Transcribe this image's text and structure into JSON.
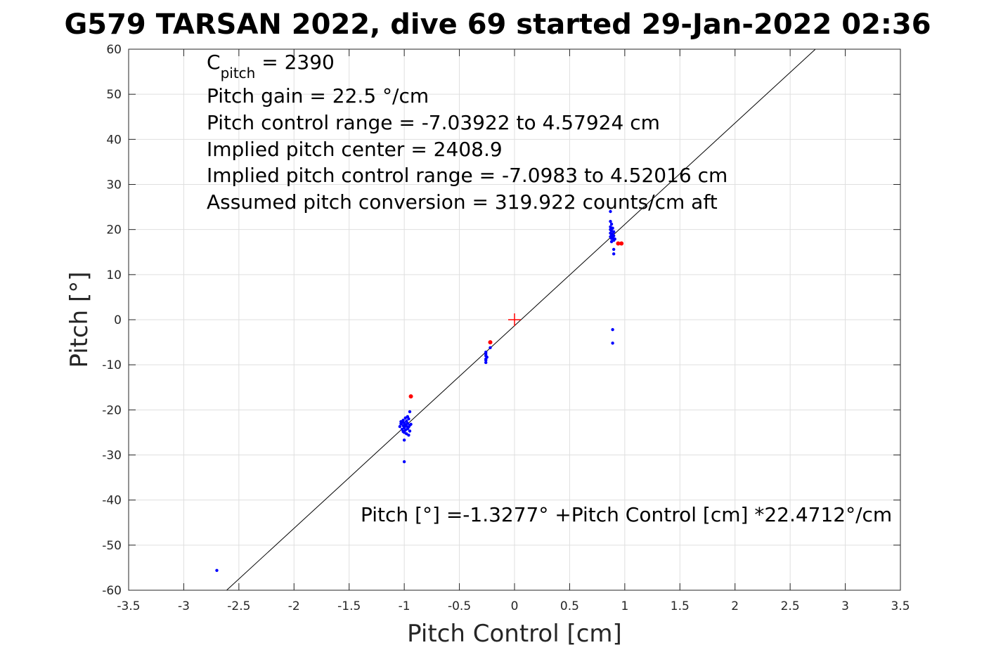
{
  "chart_data": {
    "type": "scatter",
    "title": "G579 TARSAN 2022, dive 69 started 29-Jan-2022 02:36",
    "xlabel": "Pitch Control [cm]",
    "ylabel": "Pitch [°]",
    "xlim": [
      -3.5,
      3.5
    ],
    "ylim": [
      -60,
      60
    ],
    "xticks": [
      -3.5,
      -3,
      -2.5,
      -2,
      -1.5,
      -1,
      -0.5,
      0,
      0.5,
      1,
      1.5,
      2,
      2.5,
      3,
      3.5
    ],
    "yticks": [
      -60,
      -50,
      -40,
      -30,
      -20,
      -10,
      0,
      10,
      20,
      30,
      40,
      50,
      60
    ],
    "xtick_labels": [
      "-3.5",
      "-3",
      "-2.5",
      "-2",
      "-1.5",
      "-1",
      "-0.5",
      "0",
      "0.5",
      "1",
      "1.5",
      "2",
      "2.5",
      "3",
      "3.5"
    ],
    "ytick_labels": [
      "-60",
      "-50",
      "-40",
      "-30",
      "-20",
      "-10",
      "0",
      "10",
      "20",
      "30",
      "40",
      "50",
      "60"
    ],
    "grid": true,
    "annotations": {
      "c_pitch_main": "C",
      "c_pitch_sub": "pitch",
      "c_pitch_value": " = 2390",
      "pitch_gain": "Pitch gain = 22.5 °/cm",
      "control_range": "Pitch control range = -7.03922 to 4.57924 cm",
      "implied_center": "Implied pitch center = 2408.9",
      "implied_range": "Implied pitch control range = -7.0983 to 4.52016 cm",
      "conversion": "Assumed pitch conversion = 319.922 counts/cm aft",
      "fit_equation": "Pitch [°] =-1.3277° +Pitch Control [cm] *22.4712°/cm"
    },
    "fit_line": {
      "intercept": -1.3277,
      "slope": 22.4712,
      "color": "#000000"
    },
    "center_marker": {
      "x": 0,
      "y": 0,
      "color": "#ff0000"
    },
    "series": [
      {
        "color": "#0000ff",
        "points": [
          [
            -2.7,
            -55.6
          ],
          [
            -1.0,
            -31.5
          ],
          [
            -1.0,
            -26.7
          ],
          [
            -0.95,
            -20.4
          ],
          [
            -0.97,
            -21.5
          ],
          [
            -0.99,
            -21.8
          ],
          [
            -0.96,
            -22.0
          ],
          [
            -1.01,
            -22.3
          ],
          [
            -0.98,
            -22.5
          ],
          [
            -1.02,
            -22.8
          ],
          [
            -1.0,
            -22.9
          ],
          [
            -0.97,
            -23.0
          ],
          [
            -1.03,
            -23.1
          ],
          [
            -0.99,
            -23.3
          ],
          [
            -0.95,
            -23.4
          ],
          [
            -1.01,
            -23.5
          ],
          [
            -0.98,
            -23.6
          ],
          [
            -1.04,
            -23.7
          ],
          [
            -0.96,
            -23.8
          ],
          [
            -1.0,
            -24.0
          ],
          [
            -0.97,
            -24.2
          ],
          [
            -1.02,
            -24.3
          ],
          [
            -0.99,
            -24.5
          ],
          [
            -0.95,
            -24.7
          ],
          [
            -1.0,
            -25.0
          ],
          [
            -0.98,
            -25.3
          ],
          [
            -0.96,
            -25.6
          ],
          [
            -1.01,
            -24.8
          ],
          [
            -0.94,
            -23.2
          ],
          [
            -1.03,
            -22.6
          ],
          [
            -0.26,
            -7.2
          ],
          [
            -0.26,
            -7.6
          ],
          [
            -0.26,
            -8.0
          ],
          [
            -0.25,
            -8.3
          ],
          [
            -0.26,
            -8.7
          ],
          [
            -0.26,
            -9.0
          ],
          [
            -0.26,
            -9.5
          ],
          [
            -0.22,
            -6.2
          ],
          [
            0.87,
            24.0
          ],
          [
            0.87,
            21.8
          ],
          [
            0.88,
            21.2
          ],
          [
            0.87,
            20.6
          ],
          [
            0.89,
            20.3
          ],
          [
            0.87,
            20.0
          ],
          [
            0.88,
            19.7
          ],
          [
            0.9,
            19.5
          ],
          [
            0.87,
            19.2
          ],
          [
            0.89,
            19.0
          ],
          [
            0.88,
            18.8
          ],
          [
            0.9,
            18.6
          ],
          [
            0.87,
            18.4
          ],
          [
            0.89,
            18.2
          ],
          [
            0.88,
            18.0
          ],
          [
            0.91,
            17.9
          ],
          [
            0.9,
            17.6
          ],
          [
            0.88,
            17.3
          ],
          [
            0.9,
            15.6
          ],
          [
            0.9,
            14.6
          ],
          [
            0.89,
            -2.2
          ],
          [
            0.89,
            -5.2
          ]
        ]
      },
      {
        "color": "#ff0000",
        "points": [
          [
            -0.94,
            -17.0
          ],
          [
            -0.22,
            -5.0
          ],
          [
            0.94,
            16.9
          ],
          [
            0.97,
            16.9
          ]
        ]
      }
    ]
  }
}
